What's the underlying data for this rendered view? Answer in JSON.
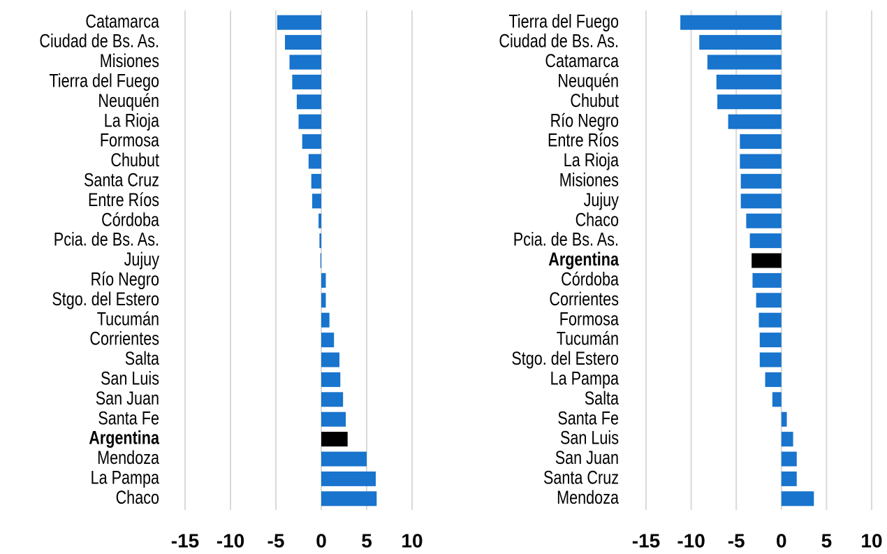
{
  "chart_data": [
    {
      "type": "bar",
      "orientation": "horizontal",
      "categories": [
        "Catamarca",
        "Ciudad de Bs. As.",
        "Misiones",
        "Tierra del Fuego",
        "Neuquén",
        "La Rioja",
        "Formosa",
        "Chubut",
        "Santa Cruz",
        "Entre Ríos",
        "Córdoba",
        "Pcia. de Bs. As.",
        "Jujuy",
        "Río Negro",
        "Stgo. del Estero",
        "Tucumán",
        "Corrientes",
        "Salta",
        "San Luis",
        "San Juan",
        "Santa Fe",
        "Argentina",
        "Mendoza",
        "La Pampa",
        "Chaco"
      ],
      "values": [
        -4.85,
        -4.0,
        -3.5,
        -3.2,
        -2.7,
        -2.5,
        -2.1,
        -1.4,
        -1.1,
        -1.0,
        -0.3,
        -0.2,
        -0.1,
        0.5,
        0.5,
        0.9,
        1.4,
        2.0,
        2.1,
        2.4,
        2.7,
        2.9,
        5.0,
        6.0,
        6.1
      ],
      "colors": [
        "#1874cd",
        "#1874cd",
        "#1874cd",
        "#1874cd",
        "#1874cd",
        "#1874cd",
        "#1874cd",
        "#1874cd",
        "#1874cd",
        "#1874cd",
        "#1874cd",
        "#1874cd",
        "#1874cd",
        "#1874cd",
        "#1874cd",
        "#1874cd",
        "#1874cd",
        "#1874cd",
        "#1874cd",
        "#1874cd",
        "#1874cd",
        "#000000",
        "#1874cd",
        "#1874cd",
        "#1874cd"
      ],
      "label_bold": [
        false,
        false,
        false,
        false,
        false,
        false,
        false,
        false,
        false,
        false,
        false,
        false,
        false,
        false,
        false,
        false,
        false,
        false,
        false,
        false,
        false,
        true,
        false,
        false,
        false
      ],
      "xlim": [
        -15,
        10
      ],
      "xticks": [
        -15,
        -10,
        -5,
        0,
        5,
        10
      ],
      "grid": true
    },
    {
      "type": "bar",
      "orientation": "horizontal",
      "categories": [
        "Tierra del Fuego",
        "Ciudad de Bs. As.",
        "Catamarca",
        "Neuquén",
        "Chubut",
        "Río Negro",
        "Entre Ríos",
        "La Rioja",
        "Misiones",
        "Jujuy",
        "Chaco",
        "Pcia. de Bs. As.",
        "Argentina",
        "Córdoba",
        "Corrientes",
        "Formosa",
        "Tucumán",
        "Stgo. del Estero",
        "La Pampa",
        "Salta",
        "Santa Fe",
        "San Luis",
        "San Juan",
        "Santa Cruz",
        "Mendoza"
      ],
      "values": [
        -11.2,
        -9.1,
        -8.2,
        -7.2,
        -7.1,
        -5.9,
        -4.6,
        -4.6,
        -4.5,
        -4.5,
        -3.9,
        -3.5,
        -3.3,
        -3.2,
        -2.8,
        -2.5,
        -2.4,
        -2.4,
        -1.8,
        -1.0,
        0.6,
        1.3,
        1.7,
        1.7,
        3.6
      ],
      "colors": [
        "#1874cd",
        "#1874cd",
        "#1874cd",
        "#1874cd",
        "#1874cd",
        "#1874cd",
        "#1874cd",
        "#1874cd",
        "#1874cd",
        "#1874cd",
        "#1874cd",
        "#1874cd",
        "#000000",
        "#1874cd",
        "#1874cd",
        "#1874cd",
        "#1874cd",
        "#1874cd",
        "#1874cd",
        "#1874cd",
        "#1874cd",
        "#1874cd",
        "#1874cd",
        "#1874cd",
        "#1874cd"
      ],
      "label_bold": [
        false,
        false,
        false,
        false,
        false,
        false,
        false,
        false,
        false,
        false,
        false,
        false,
        true,
        false,
        false,
        false,
        false,
        false,
        false,
        false,
        false,
        false,
        false,
        false,
        false
      ],
      "xlim": [
        -15,
        10
      ],
      "xticks": [
        -15,
        -10,
        -5,
        0,
        5,
        10
      ],
      "grid": true
    }
  ]
}
